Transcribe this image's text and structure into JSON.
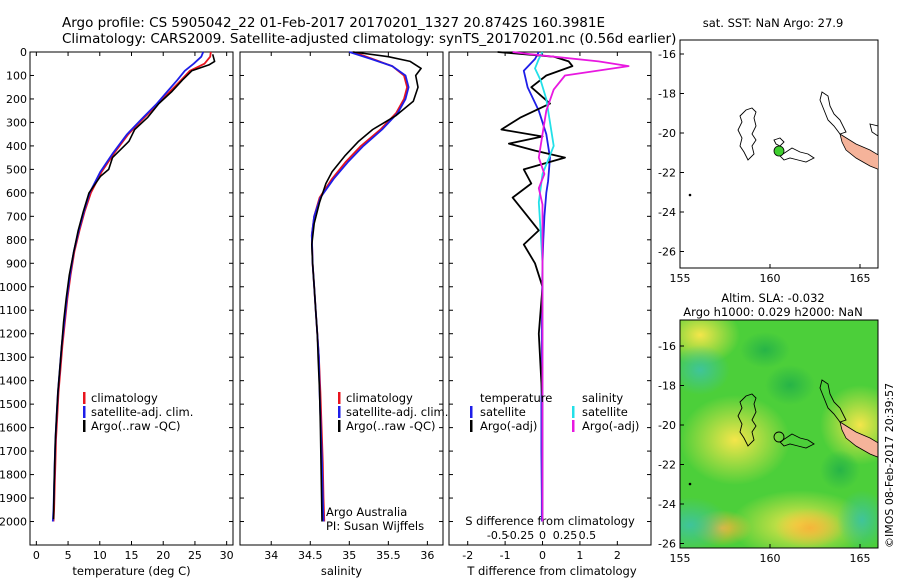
{
  "header": {
    "line1": "Argo profile: CS 5905042_22 01-Feb-2017 20170201_1327 20.8742S 160.3981E",
    "line2": "Climatology: CARS2009. Satellite-adjusted climatology: synTS_20170201.nc (0.56d earlier)"
  },
  "colors": {
    "climatology": "#e8141e",
    "satellite": "#1e1ee8",
    "argo": "#000000",
    "salinity_satellite": "#22e0e8",
    "salinity_argo": "#e818e0",
    "argo_dot": "#3fcf2f",
    "coast": "#f5b39a"
  },
  "chart_data": [
    {
      "type": "line",
      "id": "temperature",
      "xlabel": "temperature (deg C)",
      "xlim": [
        -1,
        31
      ],
      "ylim": [
        0,
        2100
      ],
      "xticks": [
        "0",
        "5",
        "10",
        "15",
        "20",
        "25",
        "30"
      ],
      "yticks": [
        "0",
        "100",
        "200",
        "300",
        "400",
        "500",
        "600",
        "700",
        "800",
        "900",
        "1000",
        "1100",
        "1200",
        "1300",
        "1400",
        "1500",
        "1600",
        "1700",
        "1800",
        "1900",
        "2000"
      ],
      "legend": [
        "climatology",
        "satellite-adj. clim.",
        "Argo(..raw -QC)"
      ],
      "series": [
        {
          "name": "climatology",
          "x": [
            27.5,
            27.4,
            26.5,
            24.2,
            22.8,
            21.0,
            19.2,
            17.0,
            14.5,
            12.3,
            10.3,
            8.6,
            7.6,
            6.8,
            6.0,
            5.4,
            4.9,
            4.5,
            4.1,
            3.8,
            3.5,
            3.3,
            3.1,
            3.0,
            2.9,
            2.8,
            2.7
          ],
          "y": [
            0,
            20,
            50,
            80,
            120,
            170,
            220,
            280,
            350,
            430,
            510,
            600,
            680,
            760,
            850,
            950,
            1050,
            1150,
            1250,
            1350,
            1450,
            1550,
            1650,
            1750,
            1850,
            1950,
            2000
          ]
        },
        {
          "name": "satellite-adj. clim.",
          "x": [
            26.3,
            26.0,
            24.8,
            23.4,
            22.2,
            20.6,
            19.0,
            16.8,
            14.3,
            12.1,
            10.1,
            8.4,
            7.5,
            6.7,
            5.9,
            5.3,
            4.8,
            4.4,
            4.0,
            3.7,
            3.4,
            3.2,
            3.0,
            2.9,
            2.8,
            2.7,
            2.6
          ],
          "y": [
            0,
            20,
            50,
            80,
            120,
            170,
            220,
            280,
            350,
            430,
            510,
            600,
            680,
            760,
            850,
            950,
            1050,
            1150,
            1250,
            1350,
            1450,
            1550,
            1650,
            1750,
            1850,
            1950,
            2000
          ]
        },
        {
          "name": "Argo(..raw -QC)",
          "x": [
            27.8,
            28.1,
            27.2,
            24.5,
            23.0,
            21.3,
            19.3,
            17.5,
            15.5,
            14.6,
            12.0,
            11.4,
            10.1,
            8.3,
            7.4,
            6.6,
            5.9,
            5.2,
            4.7,
            4.3,
            4.0,
            3.7,
            3.4,
            3.2,
            3.0,
            2.9,
            2.8,
            2.7
          ],
          "y": [
            10,
            40,
            55,
            80,
            120,
            170,
            220,
            280,
            330,
            380,
            450,
            500,
            530,
            600,
            680,
            760,
            850,
            950,
            1050,
            1150,
            1250,
            1350,
            1450,
            1550,
            1650,
            1750,
            1850,
            1990
          ]
        }
      ]
    },
    {
      "type": "line",
      "id": "salinity",
      "xlabel": "salinity",
      "xlim": [
        33.6,
        36.2
      ],
      "ylim": [
        0,
        2100
      ],
      "xticks": [
        "34",
        "34.5",
        "35",
        "35.5",
        "36"
      ],
      "legend": [
        "climatology",
        "satellite-adj. clim.",
        "Argo(..raw -QC)"
      ],
      "annotation": [
        "Argo Australia",
        "PI: Susan Wijffels"
      ],
      "series": [
        {
          "name": "climatology",
          "x": [
            35.05,
            35.3,
            35.55,
            35.7,
            35.74,
            35.7,
            35.6,
            35.4,
            35.15,
            34.95,
            34.78,
            34.62,
            34.55,
            34.52,
            34.53,
            34.55,
            34.57,
            34.59,
            34.61,
            34.63,
            34.64,
            34.65,
            34.66,
            34.67,
            34.68
          ],
          "y": [
            0,
            30,
            60,
            100,
            150,
            200,
            260,
            330,
            400,
            470,
            540,
            620,
            700,
            780,
            900,
            1000,
            1100,
            1200,
            1300,
            1450,
            1550,
            1650,
            1750,
            1900,
            2000
          ]
        },
        {
          "name": "satellite-adj. clim.",
          "x": [
            35.0,
            35.28,
            35.55,
            35.72,
            35.76,
            35.72,
            35.62,
            35.42,
            35.18,
            34.98,
            34.8,
            34.63,
            34.55,
            34.52,
            34.53,
            34.55,
            34.57,
            34.59,
            34.61,
            34.62,
            34.63,
            34.64,
            34.65,
            34.66,
            34.67
          ],
          "y": [
            0,
            30,
            60,
            100,
            150,
            200,
            260,
            330,
            400,
            470,
            540,
            620,
            700,
            780,
            900,
            1000,
            1100,
            1200,
            1300,
            1450,
            1550,
            1650,
            1750,
            1900,
            2000
          ]
        },
        {
          "name": "Argo(..raw -QC)",
          "x": [
            35.05,
            35.5,
            35.78,
            35.92,
            35.85,
            35.88,
            35.82,
            35.6,
            35.3,
            35.12,
            34.95,
            34.78,
            34.7,
            34.62,
            34.55,
            34.52,
            34.53,
            34.55,
            34.57,
            34.59,
            34.6,
            34.62,
            34.63,
            34.64,
            34.65
          ],
          "y": [
            0,
            20,
            40,
            70,
            100,
            150,
            210,
            270,
            330,
            380,
            440,
            510,
            560,
            640,
            730,
            820,
            900,
            1000,
            1100,
            1200,
            1300,
            1450,
            1600,
            1800,
            2000
          ]
        }
      ]
    },
    {
      "type": "line",
      "id": "difference",
      "xlabel_bottom": "T difference from climatology",
      "xlabel_top": "S difference from climatology",
      "xlim": [
        -2.5,
        2.9
      ],
      "ylim": [
        0,
        2100
      ],
      "xticks": [
        "-2",
        "-1",
        "0",
        "1",
        "2"
      ],
      "sticks": [
        "-0.5",
        "-0.25",
        "0",
        "0.25",
        "0.5"
      ],
      "legend_headers": [
        "temperature",
        "salinity"
      ],
      "legend": [
        "satellite",
        "Argo(-adj)",
        "satellite",
        "Argo(-adj)"
      ],
      "series": [
        {
          "name": "T satellite",
          "x": [
            -0.1,
            -0.2,
            -0.5,
            -0.4,
            -0.1,
            0.1,
            0.2,
            0.15,
            0.1,
            0.05,
            0.02,
            0.0,
            -0.02,
            -0.02,
            -0.03,
            -0.03,
            -0.02,
            -0.02
          ],
          "y": [
            0,
            30,
            80,
            150,
            250,
            350,
            450,
            550,
            600,
            700,
            800,
            900,
            1100,
            1300,
            1500,
            1700,
            1900,
            2000
          ]
        },
        {
          "name": "T Argo(-adj)",
          "x": [
            -1.2,
            0.3,
            0.7,
            0.8,
            0.1,
            -0.3,
            0.2,
            -0.6,
            -1.1,
            0.0,
            -0.9,
            -0.2,
            0.6,
            -0.5,
            -0.3,
            -0.8,
            -0.4,
            -0.1,
            -0.5,
            -0.2,
            0.0,
            -0.1,
            0.0,
            0.0,
            0.0
          ],
          "y": [
            0,
            20,
            40,
            60,
            100,
            150,
            220,
            280,
            330,
            360,
            390,
            420,
            450,
            500,
            560,
            620,
            700,
            760,
            820,
            900,
            1000,
            1200,
            1500,
            1800,
            2000
          ]
        },
        {
          "name": "S satellite",
          "x": [
            0.0,
            -0.1,
            -0.2,
            -0.05,
            0.1,
            0.2,
            0.3,
            0.0,
            -0.1,
            -0.05,
            0.0,
            0.0,
            0.0,
            0.0,
            0.0
          ],
          "y": [
            0,
            30,
            70,
            120,
            200,
            300,
            400,
            520,
            640,
            760,
            900,
            1100,
            1400,
            1800,
            2000
          ]
        },
        {
          "name": "S Argo(-adj)",
          "x": [
            -0.8,
            -0.3,
            1.5,
            2.3,
            0.6,
            0.3,
            0.1,
            0.0,
            -0.1,
            0.05,
            -0.1,
            0.0,
            0.0,
            0.0,
            0.0
          ],
          "y": [
            0,
            10,
            40,
            60,
            100,
            160,
            250,
            350,
            450,
            520,
            580,
            650,
            800,
            1200,
            2000
          ]
        }
      ]
    }
  ],
  "map_sst": {
    "title": "sat. SST: NaN Argo: 27.9",
    "xticks": [
      "155",
      "160",
      "165"
    ],
    "yticks": [
      "-16",
      "-18",
      "-20",
      "-22",
      "-24",
      "-26"
    ]
  },
  "map_sla": {
    "title1": "Altim. SLA: -0.032",
    "title2": "Argo h1000: 0.029 h2000: NaN",
    "xticks": [
      "155",
      "160",
      "165"
    ],
    "yticks": [
      "-16",
      "-18",
      "-20",
      "-22",
      "-24",
      "-26"
    ]
  },
  "credit": "©IMOS 08-Feb-2017 20:39:57"
}
